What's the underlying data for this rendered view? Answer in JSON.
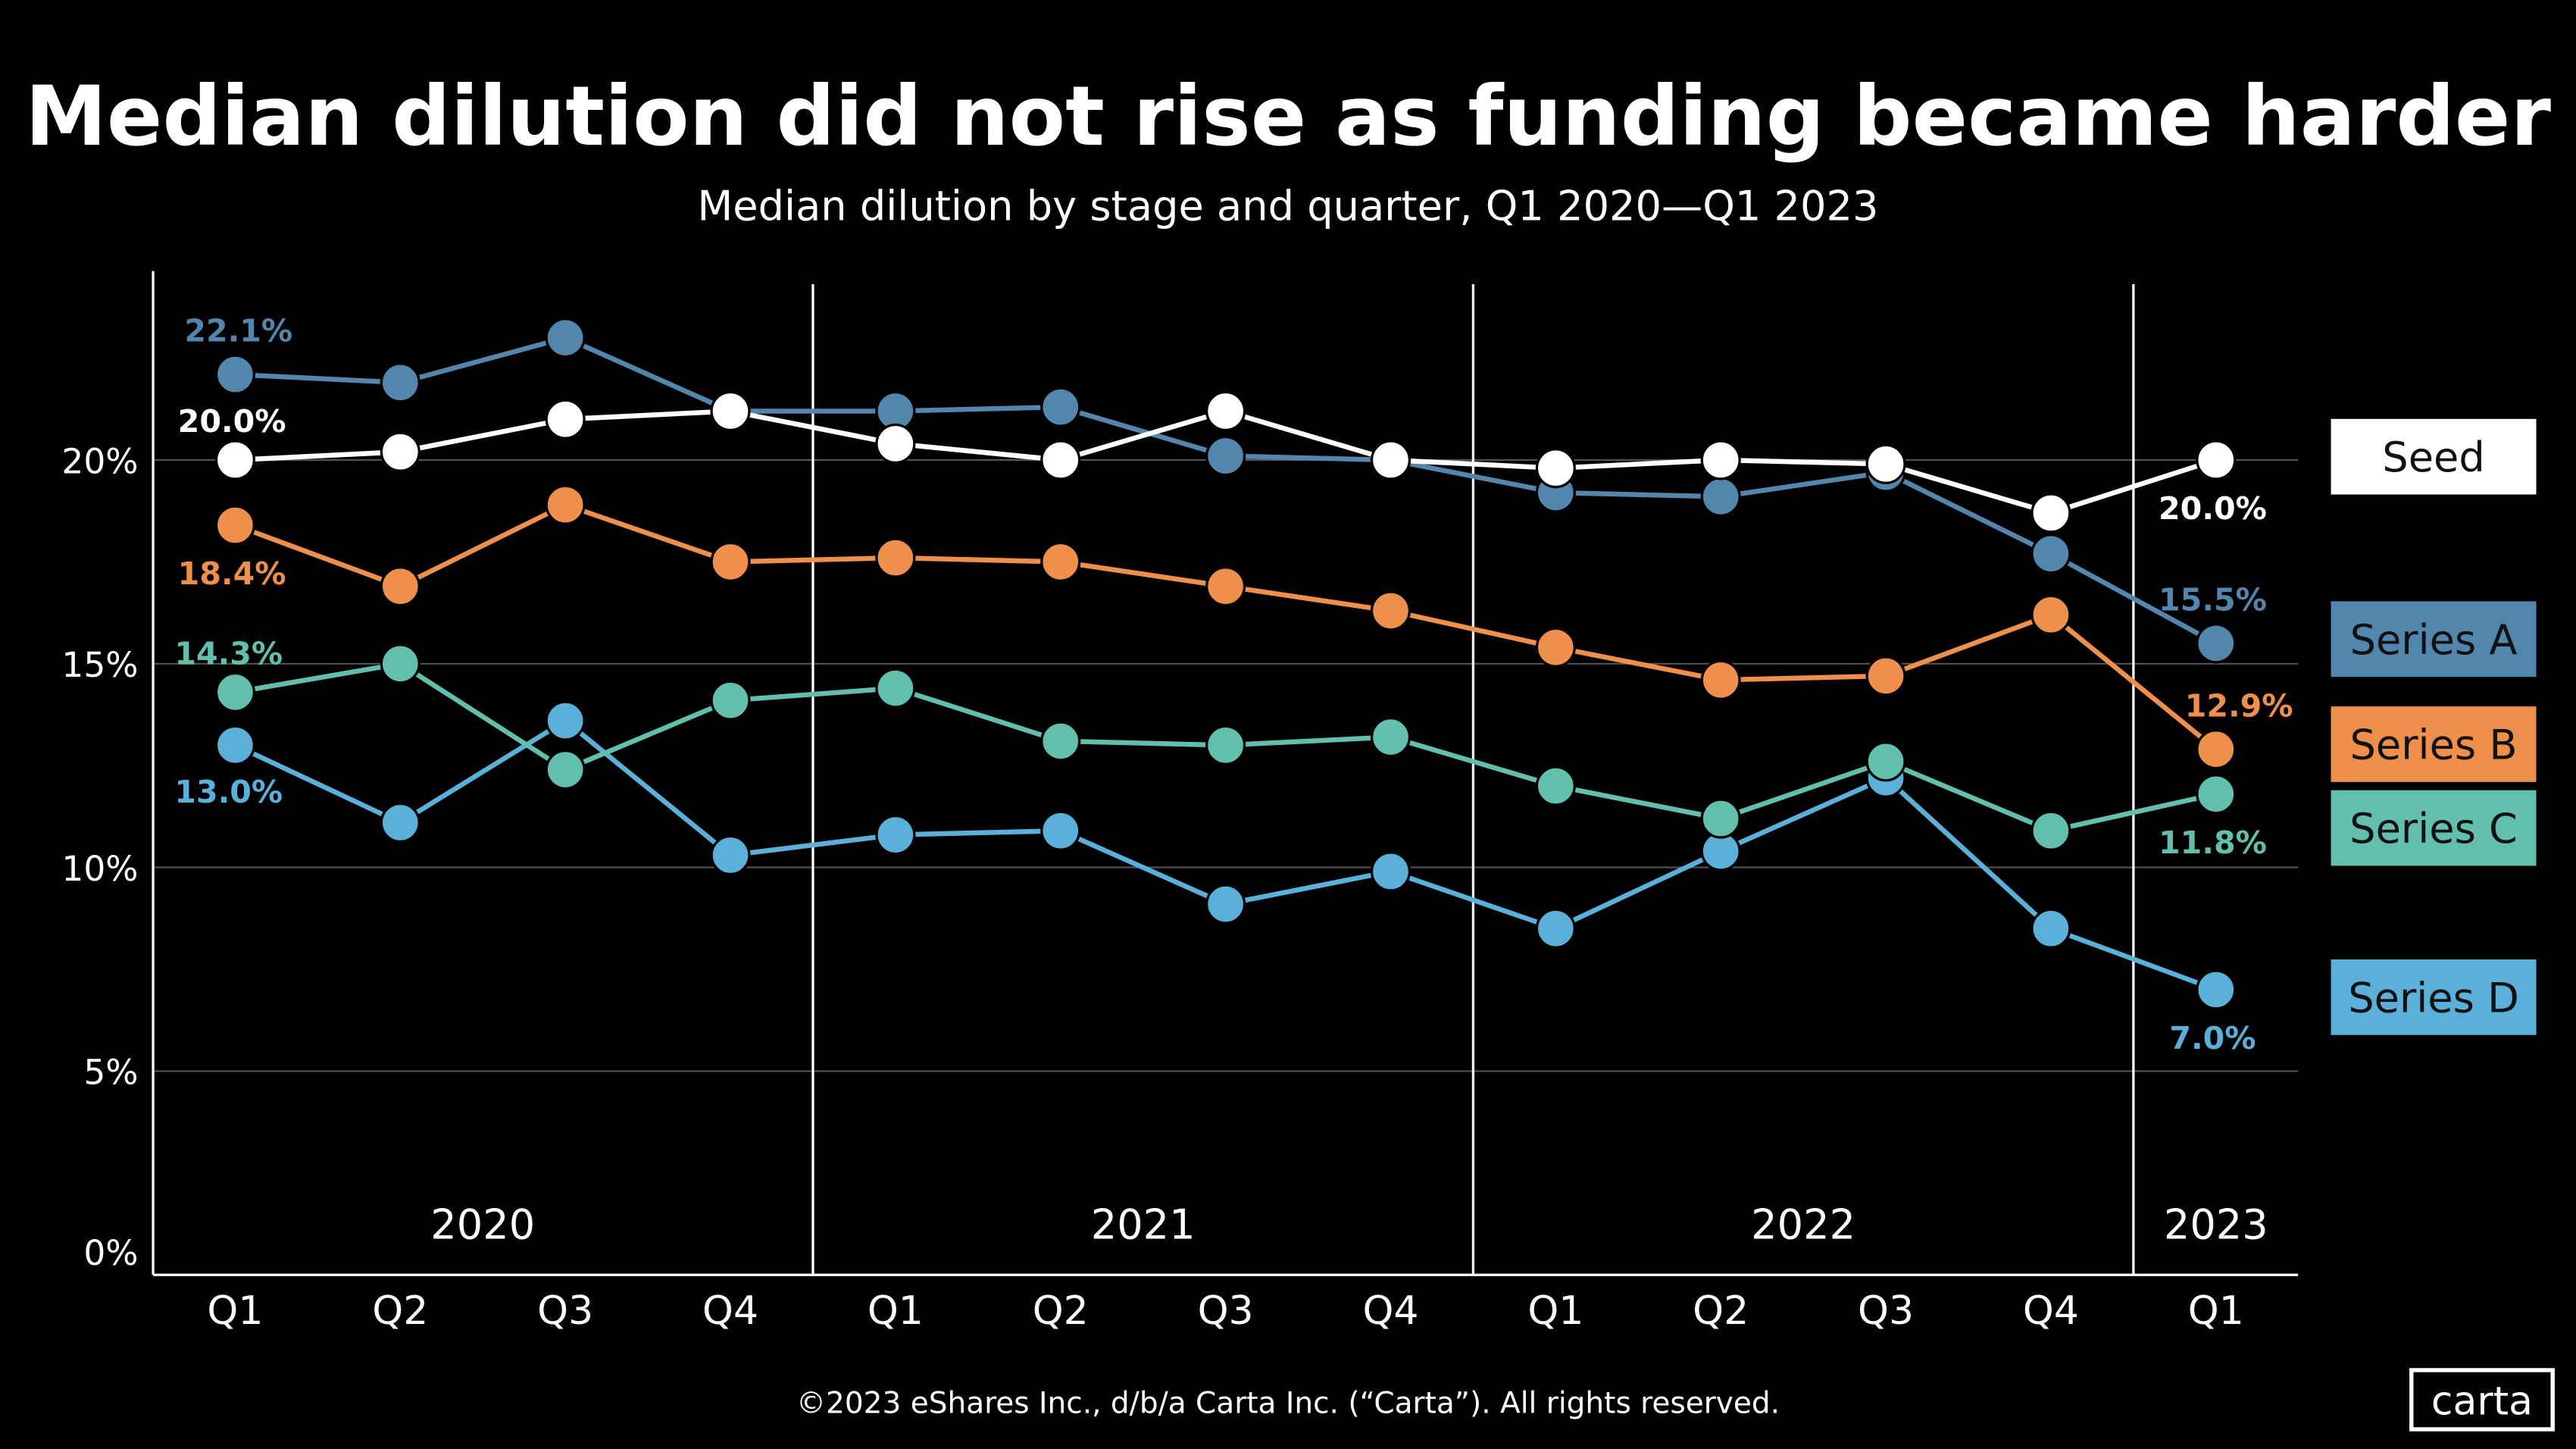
{
  "chart_data": {
    "type": "line",
    "title": "Median dilution did not rise as funding became harder",
    "subtitle": "Median dilution by stage and quarter, Q1 2020—Q1 2023",
    "xlabel": "",
    "ylabel": "",
    "categories": [
      "Q1",
      "Q2",
      "Q3",
      "Q4",
      "Q1",
      "Q2",
      "Q3",
      "Q4",
      "Q1",
      "Q2",
      "Q3",
      "Q4",
      "Q1"
    ],
    "years": [
      {
        "label": "2020",
        "start": 0,
        "end": 3
      },
      {
        "label": "2021",
        "start": 4,
        "end": 7
      },
      {
        "label": "2022",
        "start": 8,
        "end": 11
      },
      {
        "label": "2023",
        "start": 12,
        "end": 12
      }
    ],
    "ylim": [
      0,
      25
    ],
    "yticks": [
      {
        "value": 0,
        "label": "0%"
      },
      {
        "value": 5,
        "label": "5%"
      },
      {
        "value": 10,
        "label": "10%"
      },
      {
        "value": 15,
        "label": "15%"
      },
      {
        "value": 20,
        "label": "20%"
      }
    ],
    "grid": "horizontal",
    "legend": "right",
    "series": [
      {
        "name": "Series A",
        "color": "#5386ad",
        "values": [
          22.1,
          21.9,
          23.0,
          21.2,
          21.2,
          21.3,
          20.1,
          20.0,
          19.2,
          19.1,
          19.7,
          17.7,
          15.5
        ],
        "labels": {
          "first": "22.1%",
          "last": "15.5%"
        }
      },
      {
        "name": "Seed",
        "color": "#ffffff",
        "values": [
          20.0,
          20.2,
          21.0,
          21.2,
          20.4,
          20.0,
          21.2,
          20.0,
          19.8,
          20.0,
          19.9,
          18.7,
          20.0
        ],
        "labels": {
          "first": "20.0%",
          "last": "20.0%"
        }
      },
      {
        "name": "Series B",
        "color": "#ee904b",
        "values": [
          18.4,
          16.9,
          18.9,
          17.5,
          17.6,
          17.5,
          16.9,
          16.3,
          15.4,
          14.6,
          14.7,
          16.2,
          12.9
        ],
        "labels": {
          "first": "18.4%",
          "last": "12.9%"
        }
      },
      {
        "name": "Series C",
        "color": "#62bfae",
        "values": [
          14.3,
          15.0,
          12.4,
          14.1,
          14.4,
          13.1,
          13.0,
          13.2,
          12.0,
          11.2,
          12.6,
          10.9,
          11.8
        ],
        "labels": {
          "first": "14.3%",
          "last": "11.8%"
        }
      },
      {
        "name": "Series D",
        "color": "#5bb0d9",
        "values": [
          13.0,
          11.1,
          13.6,
          10.3,
          10.8,
          10.9,
          9.1,
          9.9,
          8.5,
          10.4,
          12.2,
          8.5,
          7.0
        ],
        "labels": {
          "first": "13.0%",
          "last": "7.0%"
        }
      }
    ]
  },
  "footer": {
    "copyright": "©2023 eShares Inc., d/b/a Carta Inc. (“Carta”). All rights reserved.",
    "logo_text": "carta"
  }
}
